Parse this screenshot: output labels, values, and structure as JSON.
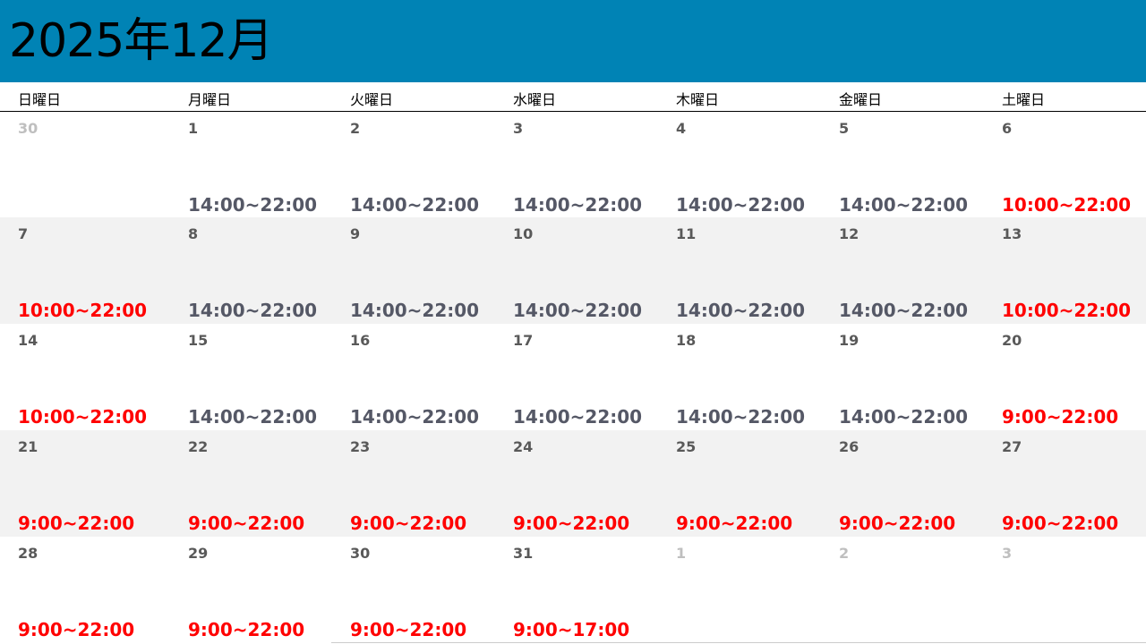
{
  "title": "2025年12月",
  "colors": {
    "header": "#0083b5",
    "weekday_hours": "#555866",
    "weekend_hours": "#ff0000",
    "muted_date": "#bfbfbf",
    "alt_row": "#f2f2f2"
  },
  "weekdays": [
    "日曜日",
    "月曜日",
    "火曜日",
    "水曜日",
    "木曜日",
    "金曜日",
    "土曜日"
  ],
  "weeks": [
    [
      {
        "day": "30",
        "muted": true,
        "hours": ""
      },
      {
        "day": "1",
        "hours": "14:00~22:00",
        "red": false
      },
      {
        "day": "2",
        "hours": "14:00~22:00",
        "red": false
      },
      {
        "day": "3",
        "hours": "14:00~22:00",
        "red": false
      },
      {
        "day": "4",
        "hours": "14:00~22:00",
        "red": false
      },
      {
        "day": "5",
        "hours": "14:00~22:00",
        "red": false
      },
      {
        "day": "6",
        "hours": "10:00~22:00",
        "red": true
      }
    ],
    [
      {
        "day": "7",
        "hours": "10:00~22:00",
        "red": true
      },
      {
        "day": "8",
        "hours": "14:00~22:00",
        "red": false
      },
      {
        "day": "9",
        "hours": "14:00~22:00",
        "red": false
      },
      {
        "day": "10",
        "hours": "14:00~22:00",
        "red": false
      },
      {
        "day": "11",
        "hours": "14:00~22:00",
        "red": false
      },
      {
        "day": "12",
        "hours": "14:00~22:00",
        "red": false
      },
      {
        "day": "13",
        "hours": "10:00~22:00",
        "red": true
      }
    ],
    [
      {
        "day": "14",
        "hours": "10:00~22:00",
        "red": true
      },
      {
        "day": "15",
        "hours": "14:00~22:00",
        "red": false
      },
      {
        "day": "16",
        "hours": "14:00~22:00",
        "red": false
      },
      {
        "day": "17",
        "hours": "14:00~22:00",
        "red": false
      },
      {
        "day": "18",
        "hours": "14:00~22:00",
        "red": false
      },
      {
        "day": "19",
        "hours": "14:00~22:00",
        "red": false
      },
      {
        "day": "20",
        "hours": "9:00~22:00",
        "red": true
      }
    ],
    [
      {
        "day": "21",
        "hours": "9:00~22:00",
        "red": true
      },
      {
        "day": "22",
        "hours": "9:00~22:00",
        "red": true
      },
      {
        "day": "23",
        "hours": "9:00~22:00",
        "red": true
      },
      {
        "day": "24",
        "hours": "9:00~22:00",
        "red": true
      },
      {
        "day": "25",
        "hours": "9:00~22:00",
        "red": true
      },
      {
        "day": "26",
        "hours": "9:00~22:00",
        "red": true
      },
      {
        "day": "27",
        "hours": "9:00~22:00",
        "red": true
      }
    ],
    [
      {
        "day": "28",
        "hours": "9:00~22:00",
        "red": true
      },
      {
        "day": "29",
        "hours": "9:00~22:00",
        "red": true
      },
      {
        "day": "30",
        "hours": "9:00~22:00",
        "red": true
      },
      {
        "day": "31",
        "hours": "9:00~17:00",
        "red": true
      },
      {
        "day": "1",
        "muted": true,
        "hours": ""
      },
      {
        "day": "2",
        "muted": true,
        "hours": ""
      },
      {
        "day": "3",
        "muted": true,
        "hours": ""
      }
    ]
  ]
}
